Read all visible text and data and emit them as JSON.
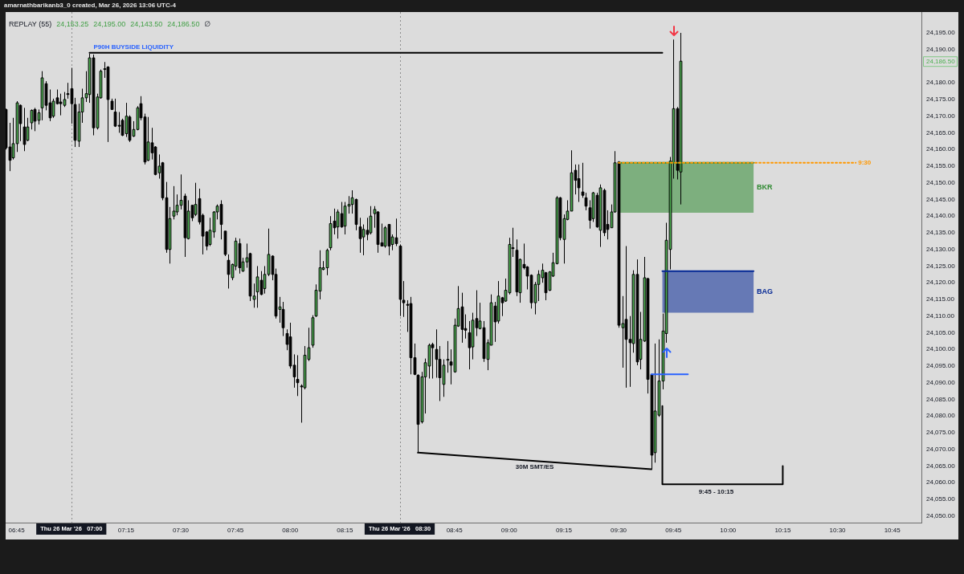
{
  "chart_data": {
    "type": "candlestick",
    "title": "amarnathbarikanb3_0 created, Mar 26, 2026 13:06 UTC-4",
    "subtitle": "REPLAY (55)  24,153.25  24,195.00  24,143.50  24,186.50  ∅",
    "x": [
      "2026-03-26T06:42",
      "2026-03-26T06:43",
      "2026-03-26T06:44",
      "2026-03-26T06:45",
      "2026-03-26T06:46",
      "2026-03-26T06:47",
      "2026-03-26T06:48",
      "2026-03-26T06:49",
      "2026-03-26T06:50",
      "2026-03-26T06:51",
      "2026-03-26T06:52",
      "2026-03-26T06:53",
      "2026-03-26T06:54",
      "2026-03-26T06:55",
      "2026-03-26T06:56",
      "2026-03-26T06:57",
      "2026-03-26T06:58",
      "2026-03-26T06:59",
      "2026-03-26T07:00",
      "2026-03-26T07:01",
      "2026-03-26T07:02",
      "2026-03-26T07:03",
      "2026-03-26T07:04",
      "2026-03-26T07:05",
      "2026-03-26T07:06",
      "2026-03-26T07:07",
      "2026-03-26T07:08",
      "2026-03-26T07:09",
      "2026-03-26T07:10",
      "2026-03-26T07:11",
      "2026-03-26T07:12",
      "2026-03-26T07:13",
      "2026-03-26T07:14",
      "2026-03-26T07:15",
      "2026-03-26T07:16",
      "2026-03-26T07:17",
      "2026-03-26T07:18",
      "2026-03-26T07:19",
      "2026-03-26T07:20",
      "2026-03-26T07:21",
      "2026-03-26T07:22",
      "2026-03-26T07:23",
      "2026-03-26T07:24",
      "2026-03-26T07:25",
      "2026-03-26T07:26",
      "2026-03-26T07:27",
      "2026-03-26T07:28",
      "2026-03-26T07:29",
      "2026-03-26T07:30",
      "2026-03-26T07:31",
      "2026-03-26T07:32",
      "2026-03-26T07:33",
      "2026-03-26T07:34",
      "2026-03-26T07:35",
      "2026-03-26T07:36",
      "2026-03-26T07:37",
      "2026-03-26T07:38",
      "2026-03-26T07:39",
      "2026-03-26T07:40",
      "2026-03-26T07:41",
      "2026-03-26T07:42",
      "2026-03-26T07:43",
      "2026-03-26T07:44",
      "2026-03-26T07:45",
      "2026-03-26T07:46",
      "2026-03-26T07:47",
      "2026-03-26T07:48",
      "2026-03-26T07:49",
      "2026-03-26T07:50",
      "2026-03-26T07:51",
      "2026-03-26T07:52",
      "2026-03-26T07:53",
      "2026-03-26T07:54",
      "2026-03-26T07:55",
      "2026-03-26T07:56",
      "2026-03-26T07:57",
      "2026-03-26T07:58",
      "2026-03-26T07:59",
      "2026-03-26T08:00",
      "2026-03-26T08:01",
      "2026-03-26T08:02",
      "2026-03-26T08:03",
      "2026-03-26T08:04",
      "2026-03-26T08:05",
      "2026-03-26T08:06",
      "2026-03-26T08:07",
      "2026-03-26T08:08",
      "2026-03-26T08:09",
      "2026-03-26T08:10",
      "2026-03-26T08:11",
      "2026-03-26T08:12",
      "2026-03-26T08:13",
      "2026-03-26T08:14",
      "2026-03-26T08:15",
      "2026-03-26T08:16",
      "2026-03-26T08:17",
      "2026-03-26T08:18",
      "2026-03-26T08:19",
      "2026-03-26T08:20",
      "2026-03-26T08:21",
      "2026-03-26T08:22",
      "2026-03-26T08:23",
      "2026-03-26T08:24",
      "2026-03-26T08:25",
      "2026-03-26T08:26",
      "2026-03-26T08:27",
      "2026-03-26T08:28",
      "2026-03-26T08:29",
      "2026-03-26T08:30",
      "2026-03-26T08:31",
      "2026-03-26T08:32",
      "2026-03-26T08:33",
      "2026-03-26T08:34",
      "2026-03-26T08:35",
      "2026-03-26T08:36",
      "2026-03-26T08:37",
      "2026-03-26T08:38",
      "2026-03-26T08:39",
      "2026-03-26T08:40",
      "2026-03-26T08:41",
      "2026-03-26T08:42",
      "2026-03-26T08:43",
      "2026-03-26T08:44",
      "2026-03-26T08:45",
      "2026-03-26T08:46",
      "2026-03-26T08:47",
      "2026-03-26T08:48",
      "2026-03-26T08:49",
      "2026-03-26T08:50",
      "2026-03-26T08:51",
      "2026-03-26T08:52",
      "2026-03-26T08:53",
      "2026-03-26T08:54",
      "2026-03-26T08:55",
      "2026-03-26T08:56",
      "2026-03-26T08:57",
      "2026-03-26T08:58",
      "2026-03-26T08:59",
      "2026-03-26T09:00",
      "2026-03-26T09:01",
      "2026-03-26T09:02",
      "2026-03-26T09:03",
      "2026-03-26T09:04",
      "2026-03-26T09:05",
      "2026-03-26T09:06",
      "2026-03-26T09:07",
      "2026-03-26T09:08",
      "2026-03-26T09:09",
      "2026-03-26T09:10",
      "2026-03-26T09:11",
      "2026-03-26T09:12",
      "2026-03-26T09:13",
      "2026-03-26T09:14",
      "2026-03-26T09:15",
      "2026-03-26T09:16",
      "2026-03-26T09:17",
      "2026-03-26T09:18",
      "2026-03-26T09:19",
      "2026-03-26T09:20",
      "2026-03-26T09:21",
      "2026-03-26T09:22",
      "2026-03-26T09:23",
      "2026-03-26T09:24",
      "2026-03-26T09:25",
      "2026-03-26T09:26",
      "2026-03-26T09:27",
      "2026-03-26T09:28",
      "2026-03-26T09:29",
      "2026-03-26T09:30",
      "2026-03-26T09:31",
      "2026-03-26T09:32",
      "2026-03-26T09:33",
      "2026-03-26T09:34",
      "2026-03-26T09:35",
      "2026-03-26T09:36",
      "2026-03-26T09:37",
      "2026-03-26T09:38",
      "2026-03-26T09:39",
      "2026-03-26T09:40",
      "2026-03-26T09:41",
      "2026-03-26T09:42",
      "2026-03-26T09:43",
      "2026-03-26T09:44",
      "2026-03-26T09:45",
      "2026-03-26T09:46",
      "2026-03-26T09:47"
    ],
    "ohlc": [
      [
        24172,
        24172.25,
        24160,
        24160.5
      ],
      [
        24160.75,
        24168,
        24153.5,
        24156.75
      ],
      [
        24157.5,
        24169.5,
        24157,
        24161.75
      ],
      [
        24161.75,
        24174.5,
        24159.25,
        24174
      ],
      [
        24173.25,
        24173.5,
        24162.5,
        24167.75
      ],
      [
        24166.75,
        24172.5,
        24159.5,
        24161.5
      ],
      [
        24162.75,
        24169.5,
        24162.5,
        24166.75
      ],
      [
        24168,
        24172,
        24166,
        24171.75
      ],
      [
        24172,
        24172.5,
        24165.5,
        24168.5
      ],
      [
        24168.75,
        24172,
        24167.5,
        24171
      ],
      [
        24172.5,
        24183.5,
        24168.75,
        24181.5
      ],
      [
        24179.75,
        24180.5,
        24171.75,
        24173.25
      ],
      [
        24174,
        24178,
        24168.5,
        24169.5
      ],
      [
        24170,
        24175.25,
        24169.5,
        24174.5
      ],
      [
        24175.5,
        24178,
        24173.5,
        24173.75
      ],
      [
        24174.25,
        24176.75,
        24170.25,
        24173.75
      ],
      [
        24173.25,
        24177.25,
        24172.75,
        24175
      ],
      [
        24176.75,
        24180,
        24175.25,
        24176.5
      ],
      [
        24178.25,
        24184.5,
        24167.75,
        24173.75
      ],
      [
        24173.5,
        24175.5,
        24160.75,
        24162.75
      ],
      [
        24162.5,
        24173.75,
        24160.75,
        24171.25
      ],
      [
        24171.25,
        24178.25,
        24168,
        24175.5
      ],
      [
        24175.5,
        24183.5,
        24174.25,
        24176.75
      ],
      [
        24176.5,
        24188.75,
        24174,
        24187.5
      ],
      [
        24187.5,
        24188.5,
        24164.25,
        24166.5
      ],
      [
        24166.5,
        24176.75,
        24166,
        24175.75
      ],
      [
        24175.5,
        24184,
        24175.25,
        24183.5
      ],
      [
        24184,
        24186.25,
        24181.5,
        24184.25
      ],
      [
        24184.75,
        24185,
        24162.25,
        24175
      ],
      [
        24174.5,
        24175.25,
        24172,
        24172
      ],
      [
        24171.25,
        24175.25,
        24166.75,
        24167
      ],
      [
        24167.25,
        24171.25,
        24165,
        24167
      ],
      [
        24168.75,
        24169.25,
        24164,
        24164.25
      ],
      [
        24164.75,
        24174,
        24163.75,
        24170
      ],
      [
        24169.75,
        24170.25,
        24162.25,
        24162.75
      ],
      [
        24164,
        24168.5,
        24163.75,
        24166
      ],
      [
        24166,
        24173,
        24165.75,
        24172.5
      ],
      [
        24173.75,
        24176,
        24168.75,
        24169.5
      ],
      [
        24169.75,
        24170.75,
        24155.5,
        24156.25
      ],
      [
        24156.75,
        24169.75,
        24156.5,
        24162.25
      ],
      [
        24162,
        24166.5,
        24157,
        24159
      ],
      [
        24160.75,
        24161,
        24152.25,
        24152.5
      ],
      [
        24153,
        24158.5,
        24151.25,
        24155
      ],
      [
        24156,
        24156.25,
        24144.75,
        24145.5
      ],
      [
        24145.5,
        24150.25,
        24129,
        24130
      ],
      [
        24130,
        24142.75,
        24125.75,
        24139.25
      ],
      [
        24140,
        24149,
        24139,
        24141.5
      ],
      [
        24141.25,
        24146.5,
        24140.25,
        24143.25
      ],
      [
        24143.25,
        24152.5,
        24142,
        24144.75
      ],
      [
        24146,
        24146.75,
        24127.75,
        24133.5
      ],
      [
        24133.25,
        24144.75,
        24133,
        24141.5
      ],
      [
        24143.25,
        24143.25,
        24138.5,
        24139.5
      ],
      [
        24140.5,
        24150,
        24140,
        24143.5
      ],
      [
        24145.25,
        24148.25,
        24137.5,
        24138.25
      ],
      [
        24140.25,
        24140.75,
        24128.5,
        24134
      ],
      [
        24135.25,
        24135.5,
        24129.75,
        24131
      ],
      [
        24131.5,
        24139.5,
        24131,
        24135.75
      ],
      [
        24135.25,
        24141.5,
        24133.5,
        24141.25
      ],
      [
        24141.25,
        24143.5,
        24139,
        24143
      ],
      [
        24143.5,
        24144.75,
        24133,
        24137.5
      ],
      [
        24135.5,
        24135.5,
        24128,
        24128.5
      ],
      [
        24126.75,
        24128.5,
        24118.25,
        24122.5
      ],
      [
        24121.5,
        24125.75,
        24120.75,
        24125.5
      ],
      [
        24125,
        24133.5,
        24123.75,
        24132.5
      ],
      [
        24131.75,
        24133.25,
        24122.75,
        24124.5
      ],
      [
        24123.5,
        24127.5,
        24123.25,
        24126.25
      ],
      [
        24126.25,
        24131.75,
        24124.5,
        24127.5
      ],
      [
        24128.75,
        24129,
        24114.5,
        24116
      ],
      [
        24115,
        24119.75,
        24112.5,
        24116
      ],
      [
        24117.25,
        24125,
        24112.5,
        24121.75
      ],
      [
        24120.75,
        24123.5,
        24116.25,
        24116.5
      ],
      [
        24118.25,
        24125,
        24116.75,
        24122.5
      ],
      [
        24122.5,
        24136.25,
        24122,
        24128.5
      ],
      [
        24128,
        24128.25,
        24120.75,
        24122.5
      ],
      [
        24122.5,
        24124.25,
        24109.25,
        24110
      ],
      [
        24112,
        24115.75,
        24108,
        24112.75
      ],
      [
        24112,
        24114.25,
        24104,
        24106.5
      ],
      [
        24104.75,
        24106,
        24099.75,
        24101.5
      ],
      [
        24103.75,
        24108,
        24094.25,
        24095
      ],
      [
        24095.25,
        24098.5,
        24088.5,
        24091.75
      ],
      [
        24091,
        24098.25,
        24086,
        24090
      ],
      [
        24089,
        24089.5,
        24078,
        24088.75
      ],
      [
        24088.5,
        24101,
        24088,
        24098.25
      ],
      [
        24097,
        24106.5,
        24096.5,
        24100.5
      ],
      [
        24101.25,
        24110.25,
        24100.5,
        24109.5
      ],
      [
        24110,
        24119.5,
        24109.75,
        24117.75
      ],
      [
        24117.5,
        24129.75,
        24115,
        24124.5
      ],
      [
        24124,
        24126.5,
        24123.75,
        24124.5
      ],
      [
        24124.5,
        24130.25,
        24122.25,
        24129.75
      ],
      [
        24130.5,
        24140,
        24129.75,
        24137.75
      ],
      [
        24138.5,
        24142.25,
        24134.5,
        24136.5
      ],
      [
        24136.75,
        24142,
        24133.25,
        24141.25
      ],
      [
        24140.75,
        24144.25,
        24136.5,
        24136.75
      ],
      [
        24137,
        24144.25,
        24134.5,
        24143
      ],
      [
        24143,
        24146,
        24140.75,
        24143.5
      ],
      [
        24143.5,
        24147.75,
        24140.75,
        24145.5
      ],
      [
        24145,
        24145.25,
        24135.75,
        24137.5
      ],
      [
        24136.75,
        24139.5,
        24129,
        24133.25
      ],
      [
        24133.75,
        24137.5,
        24128.25,
        24136
      ],
      [
        24135.75,
        24139.5,
        24132.75,
        24134.5
      ],
      [
        24135,
        24143,
        24134.5,
        24140
      ],
      [
        24140.75,
        24143,
        24136.5,
        24142
      ],
      [
        24141.25,
        24141.5,
        24129,
        24131.5
      ],
      [
        24132,
        24137.75,
        24131,
        24131
      ],
      [
        24131,
        24137,
        24130.5,
        24136.5
      ],
      [
        24137.5,
        24137.5,
        24128.25,
        24131
      ],
      [
        24131.5,
        24134.5,
        24129.75,
        24133.75
      ],
      [
        24133.5,
        24139.25,
        24131,
        24131.75
      ],
      [
        24131,
        24131.5,
        24110,
        24115
      ],
      [
        24114.75,
        24120.5,
        24109.75,
        24114
      ],
      [
        24113.5,
        24114.75,
        24105.25,
        24113.25
      ],
      [
        24113.75,
        24115.75,
        24092.5,
        24097.5
      ],
      [
        24097.5,
        24101.75,
        24092.25,
        24092.5
      ],
      [
        24092.25,
        24092.5,
        24069,
        24077.5
      ],
      [
        24078.25,
        24093.25,
        24077.75,
        24091.75
      ],
      [
        24091.75,
        24097.25,
        24080.75,
        24096
      ],
      [
        24095,
        24101.75,
        24091.25,
        24101.25
      ],
      [
        24101.5,
        24102,
        24091.25,
        24100.5
      ],
      [
        24100,
        24106,
        24091.5,
        24097
      ],
      [
        24097,
        24101,
        24084.5,
        24091.5
      ],
      [
        24089.5,
        24097,
        24085.75,
        24095.25
      ],
      [
        24096.75,
        24102.5,
        24093,
        24097
      ],
      [
        24096.25,
        24100,
        24089.5,
        24095.25
      ],
      [
        24093.25,
        24109.25,
        24093,
        24107.25
      ],
      [
        24107,
        24119,
        24106.75,
        24112.25
      ],
      [
        24112.75,
        24117,
        24102,
        24106
      ],
      [
        24106.25,
        24110.5,
        24103.25,
        24105.75
      ],
      [
        24105,
        24108.5,
        24094,
        24100.5
      ],
      [
        24100.75,
        24111,
        24097,
        24108.75
      ],
      [
        24109.25,
        24117.75,
        24104,
        24106.5
      ],
      [
        24106.25,
        24114,
        24106,
        24108.5
      ],
      [
        24106.5,
        24108.5,
        24096.25,
        24097.25
      ],
      [
        24097,
        24103,
        24093.75,
        24102
      ],
      [
        24101.25,
        24116.5,
        24101.25,
        24114
      ],
      [
        24113,
        24114.25,
        24102.25,
        24108.25
      ],
      [
        24108.5,
        24120.5,
        24107.75,
        24116
      ],
      [
        24115.5,
        24115.75,
        24110,
        24114
      ],
      [
        24114.5,
        24121.25,
        24114.25,
        24117.75
      ],
      [
        24117,
        24133.5,
        24116.5,
        24131.5
      ],
      [
        24130.5,
        24136.5,
        24127.75,
        24130.25
      ],
      [
        24129.75,
        24133,
        24116,
        24117.25
      ],
      [
        24117,
        24127.25,
        24114,
        24127
      ],
      [
        24125.5,
        24131.75,
        24124,
        24124.5
      ],
      [
        24124.75,
        24125,
        24118,
        24122
      ],
      [
        24122.25,
        24122.5,
        24112.25,
        24114
      ],
      [
        24114,
        24120.25,
        24110.5,
        24119.5
      ],
      [
        24119.5,
        24123.75,
        24114.5,
        24122.5
      ],
      [
        24121.5,
        24125.75,
        24120,
        24123.75
      ],
      [
        24123,
        24123.25,
        24114.75,
        24117
      ],
      [
        24117.75,
        24123.5,
        24117.5,
        24123.25
      ],
      [
        24122,
        24129,
        24121.75,
        24126
      ],
      [
        24125.75,
        24146,
        24125.5,
        24145.5
      ],
      [
        24145.5,
        24145.75,
        24132.75,
        24133.5
      ],
      [
        24133,
        24140.5,
        24125.75,
        24139.25
      ],
      [
        24139,
        24144.75,
        24138.75,
        24141.5
      ],
      [
        24141.5,
        24159.75,
        24141.5,
        24153
      ],
      [
        24153.75,
        24155.5,
        24146.5,
        24150.75
      ],
      [
        24151.25,
        24155.5,
        24144.25,
        24148.5
      ],
      [
        24147.25,
        24156,
        24145.5,
        24146.25
      ],
      [
        24145.5,
        24147,
        24141.75,
        24143
      ],
      [
        24142.5,
        24144.75,
        24136.25,
        24138.75
      ],
      [
        24139.25,
        24147.25,
        24138.25,
        24147
      ],
      [
        24146.25,
        24147,
        24136.5,
        24136.75
      ],
      [
        24135.75,
        24149.5,
        24130.75,
        24148.5
      ],
      [
        24147.75,
        24148.25,
        24134,
        24135
      ],
      [
        24137.5,
        24141.75,
        24133,
        24136
      ],
      [
        24136.5,
        24143.5,
        24136.5,
        24141.25
      ],
      [
        24141.25,
        24159.5,
        24141,
        24156
      ],
      [
        24156.25,
        24156.5,
        24106.5,
        24107.25
      ],
      [
        24106.5,
        24116,
        24094.5,
        24107.75
      ],
      [
        24109,
        24131,
        24088.5,
        24103
      ],
      [
        24103,
        24110,
        24088.75,
        24102
      ],
      [
        24101.75,
        24123.75,
        24099,
        24122.5
      ],
      [
        24122.5,
        24127,
        24095.25,
        24096.25
      ],
      [
        24097,
        24111.25,
        24094,
        24103
      ],
      [
        24102.5,
        24127.75,
        24102.25,
        24121.5
      ],
      [
        24121.25,
        24121.5,
        24086.75,
        24091
      ],
      [
        24092.5,
        24092.5,
        24064,
        24068.25
      ],
      [
        24069,
        24101.75,
        24066,
        24081.5
      ],
      [
        24080.25,
        24103,
        24079.75,
        24090.5
      ],
      [
        24090.5,
        24110.75,
        24088,
        24105.5
      ],
      [
        24104.75,
        24138,
        24102,
        24132.75
      ],
      [
        24130,
        24157.75,
        24124,
        24156.5
      ],
      [
        24156,
        24193,
        24151.25,
        24172.25
      ],
      [
        24172.25,
        24172.75,
        24151,
        24153.75
      ],
      [
        24153.25,
        24195,
        24143.5,
        24186.5
      ]
    ],
    "colors": [
      "#000000",
      "#000000",
      "#4caf50",
      "#4caf50",
      "#000000",
      "#000000",
      "#4caf50",
      "#4caf50",
      "#000000",
      "#4caf50",
      "#4caf50",
      "#000000",
      "#000000",
      "#4caf50",
      "#000000",
      "#000000",
      "#4caf50",
      "#000000",
      "#000000",
      "#000000",
      "#4caf50",
      "#4caf50",
      "#4caf50",
      "#4caf50",
      "#000000",
      "#4caf50",
      "#4caf50",
      "#4caf50",
      "#000000",
      "#000000",
      "#000000",
      "#000000",
      "#000000",
      "#4caf50",
      "#000000",
      "#4caf50",
      "#4caf50",
      "#000000",
      "#000000",
      "#4caf50",
      "#000000",
      "#000000",
      "#4caf50",
      "#000000",
      "#000000",
      "#4caf50",
      "#4caf50",
      "#4caf50",
      "#4caf50",
      "#000000",
      "#4caf50",
      "#000000",
      "#4caf50",
      "#000000",
      "#000000",
      "#000000",
      "#4caf50",
      "#4caf50",
      "#4caf50",
      "#000000",
      "#000000",
      "#000000",
      "#4caf50",
      "#4caf50",
      "#000000",
      "#4caf50",
      "#4caf50",
      "#000000",
      "#4caf50",
      "#4caf50",
      "#000000",
      "#4caf50",
      "#4caf50",
      "#000000",
      "#000000",
      "#4caf50",
      "#000000",
      "#000000",
      "#000000",
      "#000000",
      "#000000",
      "#000000",
      "#4caf50",
      "#4caf50",
      "#4caf50",
      "#4caf50",
      "#4caf50",
      "#4caf50",
      "#4caf50",
      "#4caf50",
      "#000000",
      "#4caf50",
      "#000000",
      "#4caf50",
      "#4caf50",
      "#4caf50",
      "#000000",
      "#000000",
      "#4caf50",
      "#000000",
      "#4caf50",
      "#4caf50",
      "#000000",
      "#000000",
      "#4caf50",
      "#000000",
      "#4caf50",
      "#000000",
      "#000000",
      "#000000",
      "#000000",
      "#000000",
      "#000000",
      "#000000",
      "#4caf50",
      "#4caf50",
      "#4caf50",
      "#000000",
      "#000000",
      "#000000",
      "#4caf50",
      "#4caf50",
      "#000000",
      "#4caf50",
      "#4caf50",
      "#000000",
      "#000000",
      "#000000",
      "#4caf50",
      "#000000",
      "#4caf50",
      "#000000",
      "#4caf50",
      "#4caf50",
      "#000000",
      "#4caf50",
      "#000000",
      "#4caf50",
      "#4caf50",
      "#000000",
      "#000000",
      "#4caf50",
      "#000000",
      "#000000",
      "#000000",
      "#4caf50",
      "#4caf50",
      "#4caf50",
      "#000000",
      "#4caf50",
      "#4caf50",
      "#4caf50",
      "#000000",
      "#4caf50",
      "#4caf50",
      "#4caf50",
      "#000000",
      "#000000",
      "#000000",
      "#000000",
      "#000000",
      "#4caf50",
      "#000000",
      "#4caf50",
      "#000000",
      "#000000",
      "#4caf50",
      "#4caf50",
      "#000000",
      "#4caf50",
      "#000000",
      "#000000",
      "#4caf50",
      "#000000",
      "#4caf50",
      "#4caf50",
      "#000000",
      "#000000",
      "#4caf50",
      "#4caf50",
      "#4caf50",
      "#4caf50",
      "#4caf50",
      "#4caf50",
      "#000000",
      "#4caf50"
    ],
    "series": [
      {
        "type": "line",
        "name": "BKR",
        "color": "#2f8a31",
        "line_style": "solid",
        "x": [
          "2026-03-26T09:30",
          "2026-03-26T10:07"
        ],
        "values": [
          24156,
          24156
        ],
        "lower": [
          24141,
          24141
        ],
        "upper": [
          24156,
          24156
        ]
      },
      {
        "type": "line",
        "name": "BAG",
        "color": "#052895",
        "line_style": "solid",
        "x": [
          "2026-03-26T09:42",
          "2026-03-26T10:07"
        ],
        "values": [
          24123.5,
          24123.5
        ],
        "lower": [
          24111,
          24111
        ],
        "upper": [
          24123.5,
          24123.5
        ]
      },
      {
        "type": "line",
        "name": "P90H BUYSIDE LIQUIDITY",
        "color": "#000000",
        "line_style": "solid",
        "x": [
          "2026-03-26T07:05",
          "2026-03-26T09:42"
        ],
        "values": [
          24189,
          24189
        ]
      },
      {
        "type": "line",
        "name": "9:30",
        "color": "#ff9800",
        "line_style": "dotted",
        "x": [
          "2026-03-26T09:30",
          "2026-03-26T10:35"
        ],
        "values": [
          24156,
          24156
        ]
      },
      {
        "type": "line",
        "color": "#2962ff",
        "line_style": "solid",
        "x": [
          "2026-03-26T09:39",
          "2026-03-26T09:49"
        ],
        "values": [
          24092.5,
          24092.5
        ]
      },
      {
        "type": "line",
        "name": "30M SMT/ES",
        "color": "#000000",
        "line_style": "solid",
        "x": [
          "2026-03-26T08:35",
          "2026-03-26T09:39"
        ],
        "values": [
          24069,
          24064
        ]
      },
      {
        "type": "line",
        "name": "9:45 - 10:15",
        "color": "#000000",
        "line_style": "solid",
        "x": [
          "2026-03-26T09:42",
          "2026-03-26T09:42",
          "2026-03-26T10:15",
          "2026-03-26T10:15"
        ],
        "values": [
          24083,
          24059.5,
          24059.5,
          24065
        ]
      }
    ],
    "annotations": [
      "24,186.50"
    ],
    "ref_lines": [
      {
        "axis": "x",
        "value": "2026-03-26T07:00",
        "label": "Thu 26 Mar '26   07:00",
        "color": "#8c8c8c",
        "line_style": "dotted"
      },
      {
        "axis": "x",
        "value": "2026-03-26T08:30",
        "label": "Thu 26 Mar '26   08:30",
        "color": "#8c8c8c",
        "line_style": "dotted"
      }
    ],
    "xlim": [
      "2026-03-26T06:42",
      "2026-03-26T10:53"
    ],
    "xticks": [
      {
        "value": "2026-03-26T06:45",
        "label": "06:45"
      },
      {
        "value": "2026-03-26T07:15",
        "label": "07:15"
      },
      {
        "value": "2026-03-26T07:30",
        "label": "07:30"
      },
      {
        "value": "2026-03-26T07:45",
        "label": "07:45"
      },
      {
        "value": "2026-03-26T08:00",
        "label": "08:00"
      },
      {
        "value": "2026-03-26T08:15",
        "label": "08:15"
      },
      {
        "value": "2026-03-26T08:45",
        "label": "08:45"
      },
      {
        "value": "2026-03-26T09:00",
        "label": "09:00"
      },
      {
        "value": "2026-03-26T09:15",
        "label": "09:15"
      },
      {
        "value": "2026-03-26T09:30",
        "label": "09:30"
      },
      {
        "value": "2026-03-26T09:45",
        "label": "09:45"
      },
      {
        "value": "2026-03-26T10:00",
        "label": "10:00"
      },
      {
        "value": "2026-03-26T10:15",
        "label": "10:15"
      },
      {
        "value": "2026-03-26T10:30",
        "label": "10:30"
      },
      {
        "value": "2026-03-26T10:45",
        "label": "10:45"
      }
    ],
    "ylim": [
      24048,
      24201.25
    ],
    "yticks": [
      {
        "value": 24050,
        "label": "24,050.00"
      },
      {
        "value": 24055,
        "label": "24,055.00"
      },
      {
        "value": 24060,
        "label": "24,060.00"
      },
      {
        "value": 24065,
        "label": "24,065.00"
      },
      {
        "value": 24070,
        "label": "24,070.00"
      },
      {
        "value": 24075,
        "label": "24,075.00"
      },
      {
        "value": 24080,
        "label": "24,080.00"
      },
      {
        "value": 24085,
        "label": "24,085.00"
      },
      {
        "value": 24090,
        "label": "24,090.00"
      },
      {
        "value": 24095,
        "label": "24,095.00"
      },
      {
        "value": 24100,
        "label": "24,100.00"
      },
      {
        "value": 24105,
        "label": "24,105.00"
      },
      {
        "value": 24110,
        "label": "24,110.00"
      },
      {
        "value": 24115,
        "label": "24,115.00"
      },
      {
        "value": 24120,
        "label": "24,120.00"
      },
      {
        "value": 24125,
        "label": "24,125.00"
      },
      {
        "value": 24130,
        "label": "24,130.00"
      },
      {
        "value": 24135,
        "label": "24,135.00"
      },
      {
        "value": 24140,
        "label": "24,140.00"
      },
      {
        "value": 24145,
        "label": "24,145.00"
      },
      {
        "value": 24150,
        "label": "24,150.00"
      },
      {
        "value": 24155,
        "label": "24,155.00"
      },
      {
        "value": 24160,
        "label": "24,160.00"
      },
      {
        "value": 24165,
        "label": "24,165.00"
      },
      {
        "value": 24170,
        "label": "24,170.00"
      },
      {
        "value": 24175,
        "label": "24,175.00"
      },
      {
        "value": 24180,
        "label": "24,180.00"
      },
      {
        "value": 24190,
        "label": "24,190.00"
      },
      {
        "value": 24195,
        "label": "24,195.00"
      }
    ],
    "grid": false,
    "legend": false,
    "marker": "none"
  }
}
